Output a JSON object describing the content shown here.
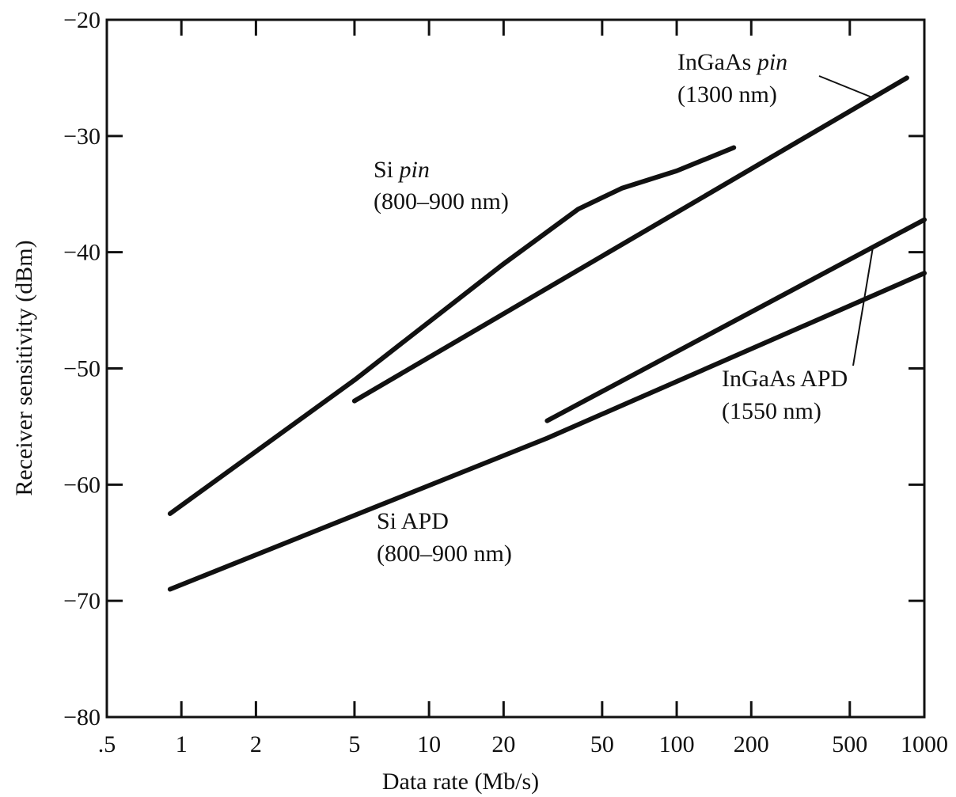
{
  "chart_data": {
    "type": "line",
    "title": "",
    "xlabel": "Data rate (Mb/s)",
    "ylabel": "Receiver sensitivity (dBm)",
    "xscale": "log",
    "xlim": [
      0.5,
      1000
    ],
    "ylim": [
      -80,
      -20
    ],
    "x_ticks": [
      0.5,
      1,
      2,
      5,
      10,
      20,
      50,
      100,
      200,
      500,
      1000
    ],
    "x_tick_labels": [
      ".5",
      "1",
      "2",
      "5",
      "10",
      "20",
      "50",
      "100",
      "200",
      "500",
      "1000"
    ],
    "y_ticks": [
      -80,
      -70,
      -60,
      -50,
      -40,
      -30,
      -20
    ],
    "y_tick_labels": [
      "−80",
      "−70",
      "−60",
      "−50",
      "−40",
      "−30",
      "−20"
    ],
    "grid": false,
    "series": [
      {
        "name": "Si pin (800–900 nm)",
        "label_main": "Si ",
        "label_italic": "pin",
        "label_sub": "(800–900 nm)",
        "x": [
          0.9,
          5,
          20,
          40,
          60,
          100,
          170
        ],
        "y": [
          -62.5,
          -51,
          -41,
          -36.3,
          -34.5,
          -33,
          -31
        ]
      },
      {
        "name": "InGaAs pin (1300 nm)",
        "label_main": "InGaAs ",
        "label_italic": "pin",
        "label_sub": "(1300 nm)",
        "x": [
          5,
          850
        ],
        "y": [
          -52.8,
          -25
        ]
      },
      {
        "name": "InGaAs APD (1550 nm)",
        "label_main": "InGaAs APD",
        "label_italic": "",
        "label_sub": "(1550 nm)",
        "x": [
          30,
          1000
        ],
        "y": [
          -54.5,
          -37.2
        ]
      },
      {
        "name": "Si APD (800–900 nm)",
        "label_main": "Si APD",
        "label_italic": "",
        "label_sub": "(800–900 nm)",
        "x": [
          0.9,
          30,
          1000
        ],
        "y": [
          -69,
          -56,
          -41.8
        ]
      }
    ]
  }
}
